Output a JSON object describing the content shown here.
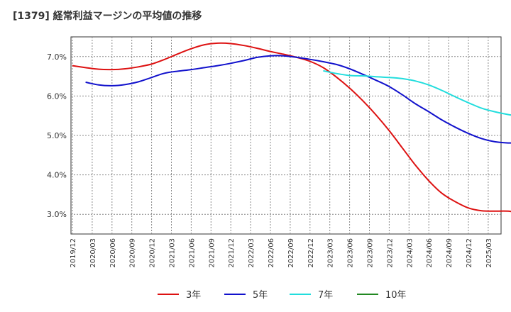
{
  "title": "[1379]  経常利益マージンの平均値の推移",
  "chart_data": {
    "type": "line",
    "title": "[1379]  経常利益マージンの平均値の推移",
    "xlabel": "",
    "ylabel": "",
    "x_ticks": [
      "2019/12",
      "2020/03",
      "2020/06",
      "2020/09",
      "2020/12",
      "2021/03",
      "2021/06",
      "2021/09",
      "2021/12",
      "2022/03",
      "2022/06",
      "2022/09",
      "2022/12",
      "2023/03",
      "2023/06",
      "2023/09",
      "2023/12",
      "2024/03",
      "2024/06",
      "2024/09",
      "2024/12",
      "2025/03"
    ],
    "y_ticks": [
      "3.0%",
      "4.0%",
      "5.0%",
      "6.0%",
      "7.0%"
    ],
    "ylim": [
      2.5,
      7.5
    ],
    "grid": true,
    "legend_position": "bottom",
    "series": [
      {
        "name": "3年",
        "color": "#dd1111",
        "values": [
          6.77,
          6.72,
          6.68,
          6.67,
          6.69,
          6.74,
          6.81,
          6.93,
          7.07,
          7.2,
          7.3,
          7.34,
          7.33,
          7.28,
          7.21,
          7.13,
          7.06,
          6.98,
          6.88,
          6.72,
          6.48,
          6.2,
          5.88,
          5.52,
          5.12,
          4.68,
          4.24,
          3.85,
          3.53,
          3.32,
          3.16,
          3.09,
          3.08,
          3.08,
          3.04,
          3.08,
          3.19
        ]
      },
      {
        "name": "5年",
        "color": "#1111cc",
        "values": [
          null,
          6.35,
          6.28,
          6.26,
          6.29,
          6.36,
          6.47,
          6.58,
          6.63,
          6.67,
          6.72,
          6.77,
          6.83,
          6.9,
          6.98,
          7.02,
          7.02,
          6.98,
          6.93,
          6.87,
          6.8,
          6.69,
          6.55,
          6.4,
          6.24,
          6.03,
          5.8,
          5.6,
          5.39,
          5.21,
          5.05,
          4.92,
          4.84,
          4.81,
          4.81,
          4.81,
          4.8,
          4.79,
          4.81,
          4.88
        ]
      },
      {
        "name": "7年",
        "color": "#22dddd",
        "values": [
          null,
          null,
          null,
          null,
          null,
          null,
          null,
          null,
          null,
          null,
          null,
          null,
          null,
          null,
          null,
          null,
          null,
          null,
          null,
          6.64,
          6.57,
          6.52,
          6.51,
          6.49,
          6.47,
          6.44,
          6.38,
          6.28,
          6.14,
          5.98,
          5.83,
          5.69,
          5.6,
          5.53,
          5.48,
          5.43,
          5.39,
          5.37,
          5.36,
          5.35,
          5.34,
          5.33,
          5.35,
          5.41
        ]
      },
      {
        "name": "10年",
        "color": "#228822",
        "values": []
      }
    ]
  }
}
